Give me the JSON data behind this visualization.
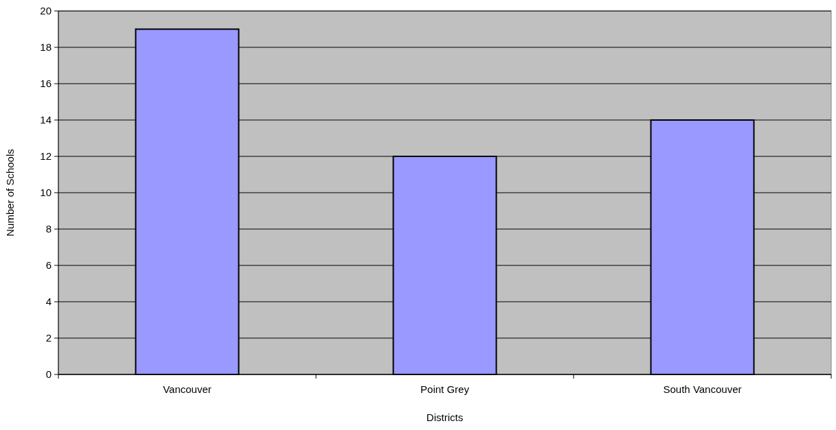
{
  "chart_data": {
    "type": "bar",
    "xlabel": "Districts",
    "ylabel": "Number of Schools",
    "categories": [
      "Vancouver",
      "Point Grey",
      "South Vancouver"
    ],
    "values": [
      19,
      12,
      14
    ],
    "color": "#9999ff",
    "ylim": [
      0,
      20
    ],
    "yticks": [
      0,
      2,
      4,
      6,
      8,
      10,
      12,
      14,
      16,
      18,
      20
    ],
    "grid": "y"
  }
}
